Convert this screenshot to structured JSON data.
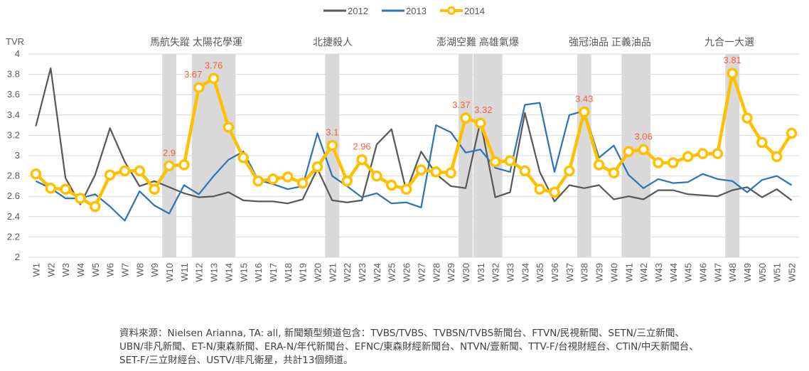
{
  "chart_data": {
    "type": "line",
    "title": "",
    "xlabel": "",
    "ylabel": "TVR",
    "ylim": [
      2,
      4
    ],
    "ytick_step": 0.2,
    "yticks": [
      "2",
      "2.2",
      "2.4",
      "2.6",
      "2.8",
      "3",
      "3.2",
      "3.4",
      "3.6",
      "3.8",
      "4"
    ],
    "grid": true,
    "legend_position": "top-center",
    "categories": [
      "W1",
      "W2",
      "W3",
      "W4",
      "W5",
      "W6",
      "W7",
      "W8",
      "W9",
      "W10",
      "W11",
      "W12",
      "W13",
      "W14",
      "W15",
      "W16",
      "W17",
      "W18",
      "W19",
      "W20",
      "W21",
      "W22",
      "W23",
      "W24",
      "W25",
      "W26",
      "W27",
      "W28",
      "W29",
      "W30",
      "W31",
      "W32",
      "W33",
      "W34",
      "W35",
      "W36",
      "W37",
      "W38",
      "W39",
      "W40",
      "W41",
      "W42",
      "W43",
      "W44",
      "W45",
      "W46",
      "W47",
      "W48",
      "W49",
      "W50",
      "W51",
      "W52"
    ],
    "series": [
      {
        "name": "2012",
        "color": "#595959",
        "marker": false,
        "values": [
          3.29,
          3.86,
          2.78,
          2.52,
          2.81,
          3.27,
          2.94,
          2.7,
          2.75,
          2.69,
          2.63,
          2.59,
          2.6,
          2.64,
          2.56,
          2.55,
          2.55,
          2.53,
          2.57,
          2.87,
          2.56,
          2.54,
          2.56,
          3.11,
          3.26,
          2.65,
          3.04,
          2.82,
          2.7,
          2.68,
          3.34,
          2.59,
          2.64,
          3.42,
          2.84,
          2.55,
          2.71,
          2.68,
          2.71,
          2.57,
          2.6,
          2.57,
          2.66,
          2.66,
          2.62,
          2.61,
          2.6,
          2.66,
          2.69,
          2.59,
          2.67,
          2.56
        ]
      },
      {
        "name": "2013",
        "color": "#2e75b6",
        "marker": false,
        "values": [
          2.75,
          2.68,
          2.58,
          2.58,
          2.62,
          2.5,
          2.36,
          2.65,
          2.51,
          2.43,
          2.71,
          2.62,
          2.8,
          2.96,
          3.04,
          2.76,
          2.72,
          2.67,
          2.7,
          3.22,
          2.8,
          2.7,
          2.59,
          2.63,
          2.53,
          2.54,
          2.49,
          3.3,
          3.23,
          3.03,
          3.06,
          2.88,
          2.84,
          3.5,
          3.52,
          2.84,
          3.4,
          3.44,
          2.98,
          3.1,
          2.81,
          2.68,
          2.77,
          2.73,
          2.74,
          2.82,
          2.77,
          2.75,
          2.64,
          2.76,
          2.8,
          2.71
        ]
      },
      {
        "name": "2014",
        "color": "#ffc000",
        "marker": true,
        "values": [
          2.82,
          2.68,
          2.67,
          2.58,
          2.5,
          2.81,
          2.85,
          2.85,
          2.67,
          2.9,
          2.91,
          3.67,
          3.76,
          3.28,
          2.98,
          2.75,
          2.77,
          2.79,
          2.73,
          2.89,
          3.1,
          2.75,
          2.96,
          2.8,
          2.71,
          2.67,
          2.86,
          2.84,
          2.83,
          3.37,
          3.32,
          2.94,
          2.95,
          2.85,
          2.67,
          2.64,
          2.85,
          3.43,
          2.91,
          2.83,
          3.04,
          3.06,
          2.93,
          2.93,
          2.99,
          3.02,
          3.02,
          3.81,
          3.37,
          3.13,
          2.99,
          3.22
        ]
      }
    ],
    "data_labels": [
      {
        "series": "2014",
        "category": "W10",
        "text": "2.9"
      },
      {
        "series": "2014",
        "category": "W12",
        "text": "3.67"
      },
      {
        "series": "2014",
        "category": "W13",
        "text": "3.76"
      },
      {
        "series": "2014",
        "category": "W21",
        "text": "3.1"
      },
      {
        "series": "2014",
        "category": "W23",
        "text": "2.96"
      },
      {
        "series": "2014",
        "category": "W30",
        "text": "3.37"
      },
      {
        "series": "2014",
        "category": "W31",
        "text": "3.32"
      },
      {
        "series": "2014",
        "category": "W38",
        "text": "3.43"
      },
      {
        "series": "2014",
        "category": "W42",
        "text": "3.06"
      },
      {
        "series": "2014",
        "category": "W48",
        "text": "3.81"
      }
    ],
    "highlight_bands": [
      {
        "from": "W10",
        "to": "W10"
      },
      {
        "from": "W12",
        "to": "W14"
      },
      {
        "from": "W21",
        "to": "W21"
      },
      {
        "from": "W30",
        "to": "W30"
      },
      {
        "from": "W31",
        "to": "W32"
      },
      {
        "from": "W38",
        "to": "W38"
      },
      {
        "from": "W41",
        "to": "W42"
      },
      {
        "from": "W48",
        "to": "W48"
      }
    ],
    "band_color": "#d9d9d9",
    "annotations": [
      {
        "text": "馬航失蹤 太陽花學運",
        "category": "W12"
      },
      {
        "text": "北捷殺人",
        "category": "W21"
      },
      {
        "text": "澎湖空難  高雄氣爆",
        "category": "W31"
      },
      {
        "text": "強冠油品 正義油品",
        "category": "W40"
      },
      {
        "text": "九合一大選",
        "category": "W48"
      }
    ],
    "data_label_color": "#f4623a"
  },
  "footnote": {
    "lines": [
      "資料來源：Nielsen Arianna, TA: all, 新聞類型頻道包含：TVBS/TVBS、TVBSN/TVBS新聞台、FTVN/民視新聞、SETN/三立新聞、",
      "UBN/非凡新聞、ET-N/東森新聞、ERA-N/年代新聞台、EFNC/東森財經新聞台、NTVN/壹新聞、TTV-F/台視財經台、CTiN/中天新聞台、",
      "SET-F/三立財經台、USTV/非凡衛星，共計13個頻道。"
    ]
  }
}
